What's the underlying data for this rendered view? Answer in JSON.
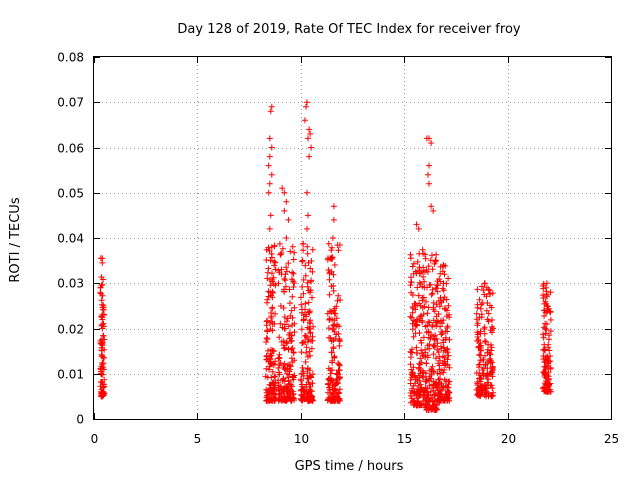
{
  "chart_data": {
    "type": "scatter",
    "title": "Day 128 of 2019, Rate Of TEC Index for receiver froy",
    "xlabel": "GPS time / hours",
    "ylabel": "ROTI / TECUs",
    "xlim": [
      0,
      25
    ],
    "ylim": [
      0,
      0.08
    ],
    "xticks": [
      0,
      5,
      10,
      15,
      20,
      25
    ],
    "yticks": [
      0,
      0.01,
      0.02,
      0.03,
      0.04,
      0.05,
      0.06,
      0.07,
      0.08
    ],
    "xtick_labels": [
      "0",
      "5",
      "10",
      "15",
      "20",
      "25"
    ],
    "ytick_labels": [
      "0",
      "0.01",
      "0.02",
      "0.03",
      "0.04",
      "0.05",
      "0.06",
      "0.07",
      "0.08"
    ],
    "grid": true,
    "marker": "+",
    "color": "#ff0000",
    "series": [
      {
        "name": "ROTI",
        "clusters": [
          {
            "x": [
              0.3,
              0.5
            ],
            "y": [
              0.005,
              0.036
            ],
            "points": [
              [
                0.4,
                0.0355
              ],
              [
                0.4,
                0.0345
              ],
              [
                0.4,
                0.023
              ],
              [
                0.4,
                0.022
              ],
              [
                0.4,
                0.02
              ],
              [
                0.4,
                0.012
              ],
              [
                0.4,
                0.011
              ]
            ]
          },
          {
            "x": [
              8.3,
              8.8
            ],
            "y": [
              0.004,
              0.069
            ],
            "points": [
              [
                8.6,
                0.069
              ],
              [
                8.55,
                0.068
              ],
              [
                8.5,
                0.062
              ],
              [
                8.6,
                0.06
              ],
              [
                8.5,
                0.058
              ],
              [
                8.45,
                0.056
              ],
              [
                8.6,
                0.054
              ],
              [
                8.5,
                0.052
              ],
              [
                8.45,
                0.05
              ],
              [
                8.55,
                0.045
              ],
              [
                8.5,
                0.042
              ],
              [
                8.6,
                0.038
              ]
            ]
          },
          {
            "x": [
              8.9,
              9.7
            ],
            "y": [
              0.004,
              0.051
            ],
            "points": [
              [
                9.1,
                0.051
              ],
              [
                9.2,
                0.05
              ],
              [
                9.3,
                0.048
              ],
              [
                9.2,
                0.046
              ],
              [
                9.4,
                0.044
              ],
              [
                9.3,
                0.04
              ]
            ]
          },
          {
            "x": [
              10.0,
              10.6
            ],
            "y": [
              0.004,
              0.07
            ],
            "points": [
              [
                10.3,
                0.07
              ],
              [
                10.25,
                0.069
              ],
              [
                10.2,
                0.066
              ],
              [
                10.4,
                0.064
              ],
              [
                10.45,
                0.063
              ],
              [
                10.35,
                0.062
              ],
              [
                10.5,
                0.06
              ],
              [
                10.4,
                0.058
              ],
              [
                10.3,
                0.05
              ],
              [
                10.35,
                0.045
              ],
              [
                10.3,
                0.042
              ]
            ]
          },
          {
            "x": [
              11.3,
              11.9
            ],
            "y": [
              0.004,
              0.047
            ],
            "points": [
              [
                11.6,
                0.047
              ],
              [
                11.6,
                0.044
              ],
              [
                11.55,
                0.04
              ]
            ]
          },
          {
            "x": [
              15.3,
              16.0
            ],
            "y": [
              0.003,
              0.043
            ],
            "points": [
              [
                15.6,
                0.043
              ],
              [
                15.7,
                0.042
              ]
            ]
          },
          {
            "x": [
              16.0,
              16.6
            ],
            "y": [
              0.002,
              0.062
            ],
            "points": [
              [
                16.2,
                0.062
              ],
              [
                16.1,
                0.062
              ],
              [
                16.3,
                0.061
              ],
              [
                16.2,
                0.056
              ],
              [
                16.15,
                0.054
              ],
              [
                16.2,
                0.052
              ],
              [
                16.3,
                0.047
              ],
              [
                16.4,
                0.046
              ]
            ]
          },
          {
            "x": [
              16.6,
              17.2
            ],
            "y": [
              0.004,
              0.034
            ],
            "points": [
              [
                16.9,
                0.034
              ],
              [
                16.95,
                0.032
              ],
              [
                16.9,
                0.03
              ]
            ]
          },
          {
            "x": [
              18.5,
              19.3
            ],
            "y": [
              0.005,
              0.03
            ],
            "points": [
              [
                18.9,
                0.03
              ],
              [
                19.0,
                0.029
              ],
              [
                19.1,
                0.0285
              ]
            ]
          },
          {
            "x": [
              21.7,
              22.1
            ],
            "y": [
              0.006,
              0.03
            ],
            "points": [
              [
                21.9,
                0.03
              ],
              [
                21.85,
                0.029
              ],
              [
                21.9,
                0.025
              ],
              [
                21.95,
                0.024
              ],
              [
                21.9,
                0.021
              ]
            ]
          }
        ]
      }
    ]
  }
}
